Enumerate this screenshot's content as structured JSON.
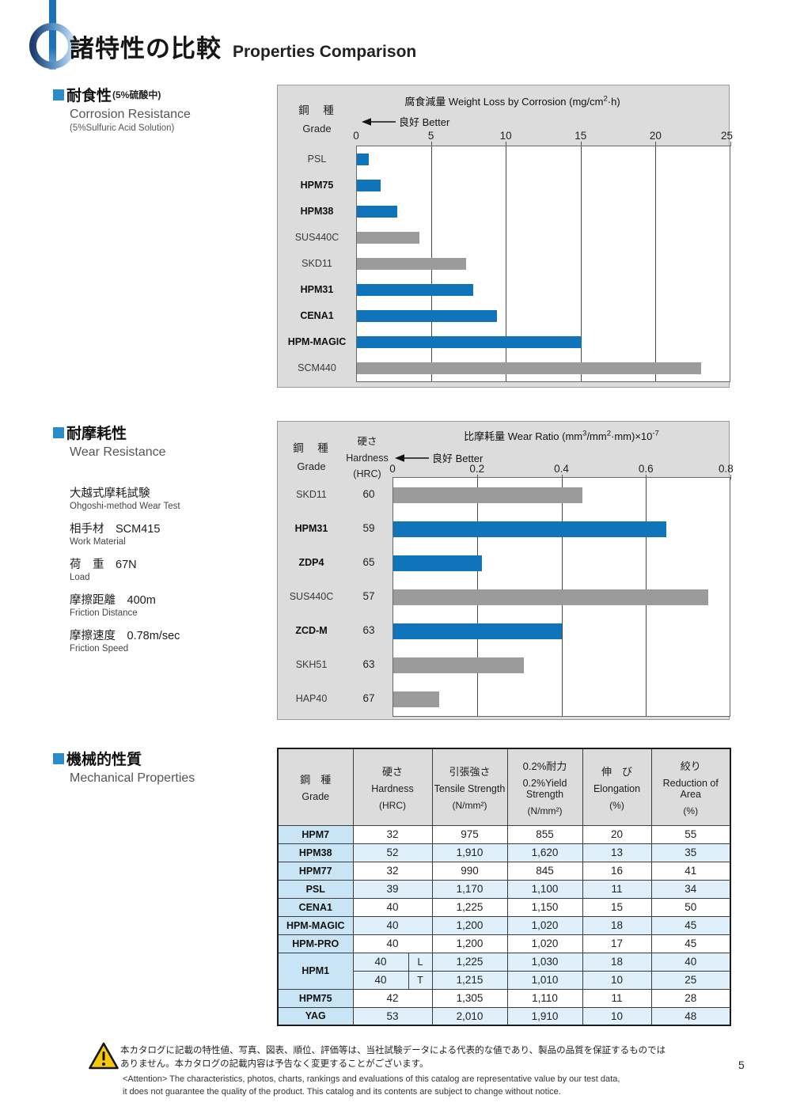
{
  "page": {
    "title_jp": "諸特性の比較",
    "title_en": "Properties Comparison",
    "page_number": "5"
  },
  "colors": {
    "bar_blue": "#0f74b9",
    "bar_gray": "#9b9b9b",
    "chart_bg": "#dcdcdc",
    "accent_blue": "#2a8bca",
    "table_grade_col": "#c9e5f5",
    "table_stripe": "#dff0fa",
    "warning_yellow": "#f5c90a"
  },
  "sections": {
    "corrosion": {
      "heading_jp": "耐食性",
      "heading_jp_note": "(5%硫酸中)",
      "heading_en": "Corrosion Resistance",
      "heading_en_note": "(5%Sulfuric Acid Solution)"
    },
    "wear": {
      "heading_jp": "耐摩耗性",
      "heading_en": "Wear Resistance",
      "conditions": [
        {
          "jp": "大越式摩耗試験",
          "en": "Ohgoshi-method Wear Test"
        },
        {
          "jp": "相手材　SCM415",
          "en": "Work Material"
        },
        {
          "jp": "荷　重　67N",
          "en": "Load"
        },
        {
          "jp": "摩擦距離　400m",
          "en": "Friction Distance"
        },
        {
          "jp": "摩擦速度　0.78m/sec",
          "en": "Friction Speed"
        }
      ]
    },
    "mechanical": {
      "heading_jp": "機械的性質",
      "heading_en": "Mechanical Properties"
    }
  },
  "chart_data": [
    {
      "type": "bar",
      "orientation": "horizontal",
      "title_parts": [
        {
          "text": "腐食減量 Weight Loss by Corrosion (mg/cm"
        },
        {
          "sup": "2"
        },
        {
          "text": "·h)"
        }
      ],
      "grade_jp": "鋼　種",
      "grade_en": "Grade",
      "better_label": "良好 Better",
      "xlim": [
        0,
        25
      ],
      "ticks": [
        0,
        5,
        10,
        15,
        20,
        25
      ],
      "categories": [
        "PSL",
        "HPM75",
        "HPM38",
        "SUS440C",
        "SKD11",
        "HPM31",
        "CENA1",
        "HPM-MAGIC",
        "SCM440"
      ],
      "values": [
        0.8,
        1.6,
        2.7,
        4.2,
        7.3,
        7.8,
        9.4,
        15.1,
        23.1
      ],
      "bold": [
        false,
        true,
        true,
        false,
        false,
        true,
        true,
        true,
        false
      ],
      "colors": [
        "blue",
        "blue",
        "blue",
        "gray",
        "gray",
        "blue",
        "blue",
        "blue",
        "gray"
      ]
    },
    {
      "type": "bar",
      "orientation": "horizontal",
      "title_parts": [
        {
          "text": "比摩耗量 Wear Ratio (mm"
        },
        {
          "sup": "3"
        },
        {
          "text": "/mm"
        },
        {
          "sup": "2"
        },
        {
          "text": "·mm)×10"
        },
        {
          "sup": "-7"
        }
      ],
      "grade_jp": "鋼　種",
      "grade_en": "Grade",
      "hardness_header": {
        "jp": "硬さ",
        "en": "Hardness",
        "unit": "(HRC)"
      },
      "better_label": "良好 Better",
      "xlim": [
        0,
        0.8
      ],
      "ticks": [
        0,
        0.2,
        0.4,
        0.6,
        0.8
      ],
      "categories": [
        "SKD11",
        "HPM31",
        "ZDP4",
        "SUS440C",
        "ZCD-M",
        "SKH51",
        "HAP40"
      ],
      "hardness": [
        60,
        59,
        65,
        57,
        63,
        63,
        67
      ],
      "values": [
        0.45,
        0.65,
        0.21,
        0.75,
        0.4,
        0.31,
        0.11
      ],
      "bold": [
        false,
        true,
        true,
        false,
        true,
        false,
        false
      ],
      "colors": [
        "gray",
        "blue",
        "blue",
        "gray",
        "blue",
        "gray",
        "gray"
      ]
    }
  ],
  "table": {
    "headers": [
      {
        "jp": "鋼　種",
        "en": "Grade",
        "unit": ""
      },
      {
        "jp": "硬さ",
        "en": "Hardness",
        "unit": "(HRC)"
      },
      {
        "jp": "引張強さ",
        "en": "Tensile Strength",
        "unit": "(N/mm²)"
      },
      {
        "jp": "0.2%耐力",
        "en": "0.2%Yield Strength",
        "unit": "(N/mm²)"
      },
      {
        "jp": "伸　び",
        "en": "Elongation",
        "unit": "(%)"
      },
      {
        "jp": "絞り",
        "en": "Reduction of Area",
        "unit": "(%)"
      }
    ],
    "rows": [
      {
        "grade": "HPM7",
        "hardness": "32",
        "tensile": "975",
        "yield": "855",
        "elong": "20",
        "reduction": "55",
        "shade": false
      },
      {
        "grade": "HPM38",
        "hardness": "52",
        "tensile": "1,910",
        "yield": "1,620",
        "elong": "13",
        "reduction": "35",
        "shade": true
      },
      {
        "grade": "HPM77",
        "hardness": "32",
        "tensile": "990",
        "yield": "845",
        "elong": "16",
        "reduction": "41",
        "shade": false
      },
      {
        "grade": "PSL",
        "hardness": "39",
        "tensile": "1,170",
        "yield": "1,100",
        "elong": "11",
        "reduction": "34",
        "shade": true
      },
      {
        "grade": "CENA1",
        "hardness": "40",
        "tensile": "1,225",
        "yield": "1,150",
        "elong": "15",
        "reduction": "50",
        "shade": false
      },
      {
        "grade": "HPM-MAGIC",
        "hardness": "40",
        "tensile": "1,200",
        "yield": "1,020",
        "elong": "18",
        "reduction": "45",
        "shade": true
      },
      {
        "grade": "HPM-PRO",
        "hardness": "40",
        "tensile": "1,200",
        "yield": "1,020",
        "elong": "17",
        "reduction": "45",
        "shade": false
      },
      {
        "grade": "HPM1",
        "rowspan": 2,
        "hardness": "40",
        "dir": "L",
        "tensile": "1,225",
        "yield": "1,030",
        "elong": "18",
        "reduction": "40",
        "shade": true
      },
      {
        "grade": null,
        "hardness": "40",
        "dir": "T",
        "tensile": "1,215",
        "yield": "1,010",
        "elong": "10",
        "reduction": "25",
        "shade": true
      },
      {
        "grade": "HPM75",
        "hardness": "42",
        "tensile": "1,305",
        "yield": "1,110",
        "elong": "11",
        "reduction": "28",
        "shade": false
      },
      {
        "grade": "YAG",
        "hardness": "53",
        "tensile": "2,010",
        "yield": "1,910",
        "elong": "10",
        "reduction": "48",
        "shade": true
      }
    ]
  },
  "footer": {
    "jp_line1": "本カタログに記載の特性値、写真、図表、順位、評価等は、当社試験データによる代表的な値であり、製品の品質を保証するものでは",
    "jp_line2": "ありません。本カタログの記載内容は予告なく変更することがございます。",
    "en_line1": "<Attention> The characteristics, photos, charts, rankings and evaluations of this catalog are representative value by our test data,",
    "en_line2": "it does not guarantee the quality of the product. This catalog and its contents are subject to change without notice."
  }
}
